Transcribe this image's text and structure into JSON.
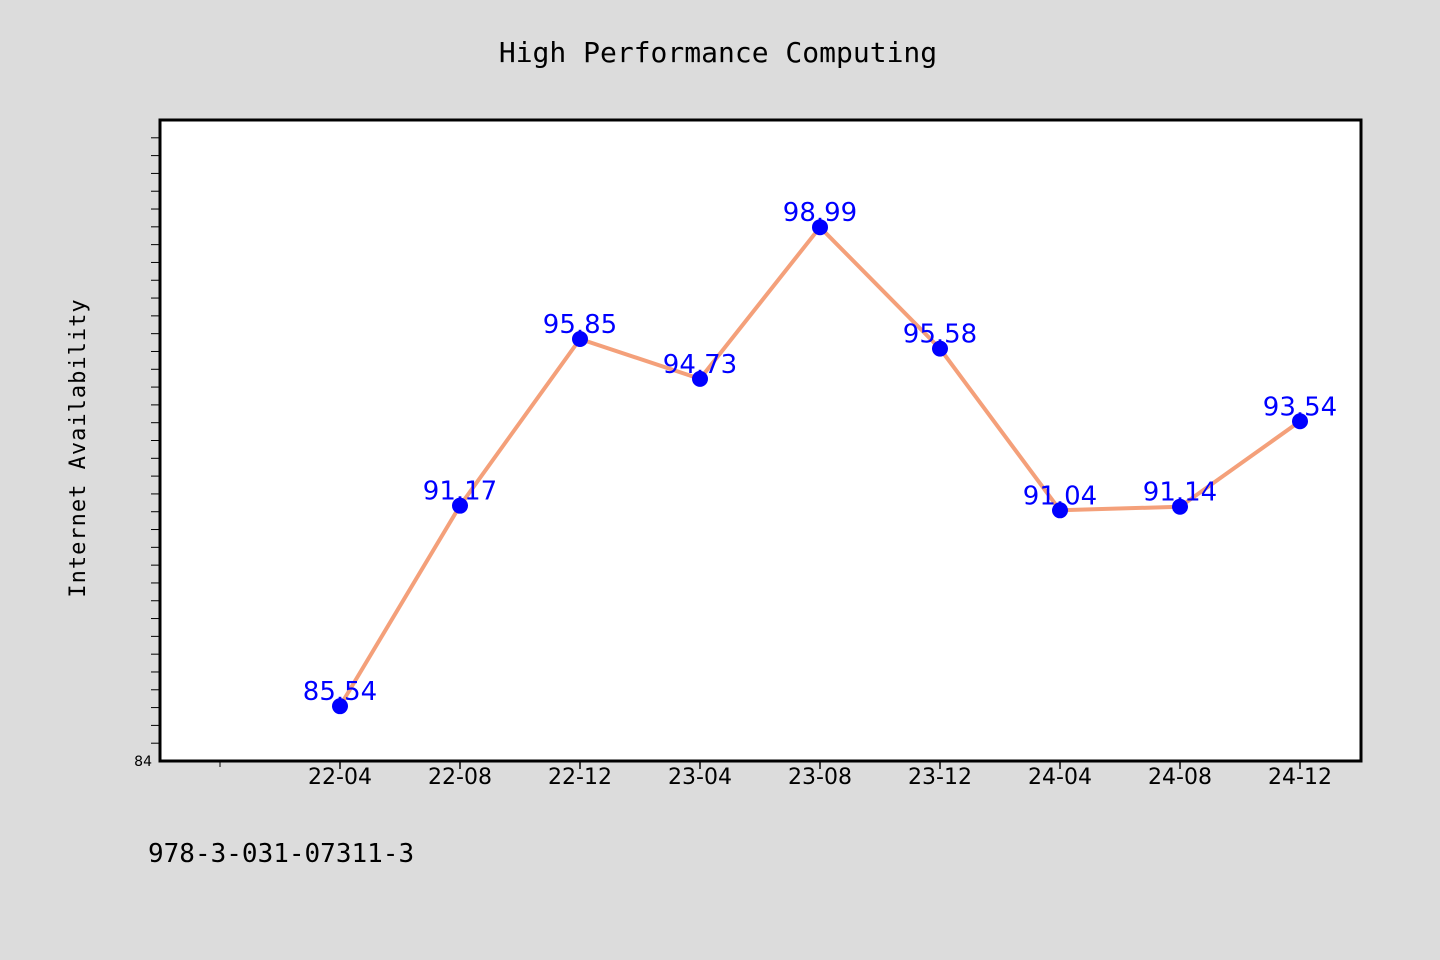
{
  "chart_data": {
    "type": "line",
    "title": "High Performance Computing",
    "xlabel": "",
    "ylabel": "Internet Availability",
    "categories": [
      "22-04",
      "22-08",
      "22-12",
      "23-04",
      "23-08",
      "23-12",
      "24-04",
      "24-08",
      "24-12"
    ],
    "series": [
      {
        "values": [
          85.54,
          91.17,
          95.85,
          94.73,
          98.99,
          95.58,
          91.04,
          91.14,
          93.54
        ],
        "labels": [
          "85.54",
          "91.17",
          "95.85",
          "94.73",
          "98.99",
          "95.58",
          "91.04",
          "91.14",
          "93.54"
        ]
      }
    ],
    "ylim": [
      84,
      102
    ],
    "yticks_labeled": [
      "84"
    ],
    "grid": false,
    "legend": "none",
    "colors": {
      "line": "#f4a07a",
      "marker": "#0000ff",
      "labels": "#0000ff",
      "plot_bg": "#ffffff",
      "figure_bg": "#dcdcdc"
    }
  },
  "footnote": "978-3-031-07311-3"
}
